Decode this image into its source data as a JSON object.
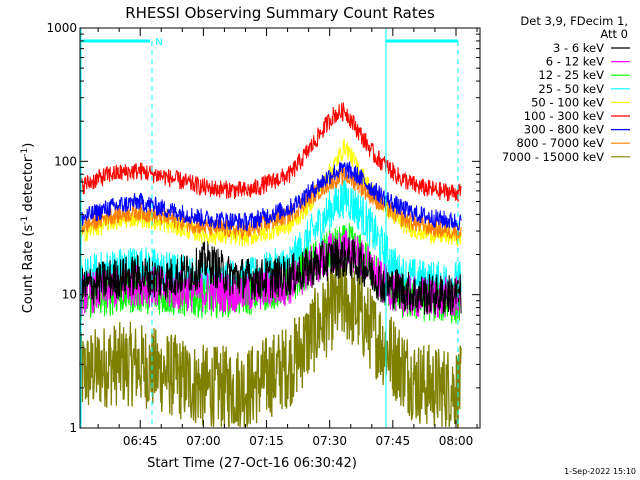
{
  "chart_data": {
    "type": "line",
    "title": "RHESSI Observing Summary Count Rates",
    "xlabel": "Start Time (27-Oct-16 06:30:42)",
    "ylabel": "Count Rate (s",
    "ylabel_sup1": "-1",
    "ylabel_mid": " detector",
    "ylabel_sup2": "-1",
    "ylabel_end": ")",
    "yscale": "log",
    "ylim": [
      1,
      1000
    ],
    "xlim_minutes": [
      0,
      95
    ],
    "x_ticks": [
      {
        "label": "06:45",
        "minutes": 14.3
      },
      {
        "label": "07:00",
        "minutes": 29.3
      },
      {
        "label": "07:15",
        "minutes": 44.3
      },
      {
        "label": "07:30",
        "minutes": 59.3
      },
      {
        "label": "07:45",
        "minutes": 74.3
      },
      {
        "label": "08:00",
        "minutes": 89.3
      }
    ],
    "y_ticks": [
      {
        "label": "1",
        "value": 1
      },
      {
        "label": "10",
        "value": 10
      },
      {
        "label": "100",
        "value": 100
      },
      {
        "label": "1000",
        "value": 1000
      }
    ],
    "legend_header": [
      "Det 3,9, FDecim 1,",
      "Att 0"
    ],
    "series": [
      {
        "name": "3 - 6 keV",
        "color": "#000000",
        "points": [
          [
            0,
            11
          ],
          [
            7,
            13
          ],
          [
            14,
            14
          ],
          [
            20,
            13
          ],
          [
            27,
            15
          ],
          [
            30,
            18
          ],
          [
            35,
            14
          ],
          [
            42,
            13
          ],
          [
            50,
            14
          ],
          [
            55,
            16
          ],
          [
            60,
            19
          ],
          [
            64,
            19
          ],
          [
            68,
            16
          ],
          [
            72,
            12
          ],
          [
            76,
            11
          ],
          [
            80,
            10
          ],
          [
            85,
            10
          ],
          [
            90,
            10
          ]
        ]
      },
      {
        "name": "6 - 12 keV",
        "color": "#ff00ff",
        "points": [
          [
            0,
            10
          ],
          [
            7,
            11
          ],
          [
            14,
            12
          ],
          [
            20,
            11
          ],
          [
            30,
            10.5
          ],
          [
            40,
            10.5
          ],
          [
            50,
            12
          ],
          [
            55,
            16
          ],
          [
            60,
            21
          ],
          [
            64,
            22
          ],
          [
            68,
            17
          ],
          [
            72,
            12
          ],
          [
            76,
            10
          ],
          [
            80,
            9.5
          ],
          [
            85,
            9.5
          ],
          [
            90,
            9.5
          ]
        ]
      },
      {
        "name": "12 - 25 keV",
        "color": "#00ff00",
        "points": [
          [
            0,
            9
          ],
          [
            7,
            10
          ],
          [
            14,
            10.5
          ],
          [
            20,
            10
          ],
          [
            30,
            9.5
          ],
          [
            40,
            10
          ],
          [
            50,
            12
          ],
          [
            55,
            17
          ],
          [
            60,
            22
          ],
          [
            64,
            24
          ],
          [
            68,
            18
          ],
          [
            72,
            12
          ],
          [
            76,
            9.5
          ],
          [
            80,
            9
          ],
          [
            85,
            9
          ],
          [
            90,
            8.5
          ]
        ]
      },
      {
        "name": "25 - 50 keV",
        "color": "#00ffff",
        "points": [
          [
            0,
            13
          ],
          [
            7,
            15.5
          ],
          [
            14,
            16.5
          ],
          [
            20,
            15
          ],
          [
            30,
            13
          ],
          [
            40,
            13
          ],
          [
            50,
            17
          ],
          [
            55,
            28
          ],
          [
            60,
            45
          ],
          [
            63,
            55
          ],
          [
            67,
            40
          ],
          [
            72,
            22
          ],
          [
            76,
            14
          ],
          [
            80,
            13
          ],
          [
            85,
            12.5
          ],
          [
            90,
            12.5
          ]
        ]
      },
      {
        "name": "50 - 100 keV",
        "color": "#ffff00",
        "points": [
          [
            0,
            28
          ],
          [
            7,
            35
          ],
          [
            14,
            38
          ],
          [
            20,
            34
          ],
          [
            30,
            28
          ],
          [
            40,
            27
          ],
          [
            50,
            33
          ],
          [
            55,
            50
          ],
          [
            60,
            90
          ],
          [
            63,
            130
          ],
          [
            66,
            90
          ],
          [
            70,
            55
          ],
          [
            76,
            35
          ],
          [
            80,
            30
          ],
          [
            85,
            28
          ],
          [
            90,
            27
          ]
        ]
      },
      {
        "name": "100 - 300 keV",
        "color": "#ff0000",
        "points": [
          [
            0,
            65
          ],
          [
            7,
            80
          ],
          [
            14,
            85
          ],
          [
            20,
            77
          ],
          [
            30,
            63
          ],
          [
            40,
            60
          ],
          [
            50,
            80
          ],
          [
            55,
            130
          ],
          [
            60,
            220
          ],
          [
            63,
            240
          ],
          [
            66,
            170
          ],
          [
            70,
            110
          ],
          [
            76,
            75
          ],
          [
            80,
            65
          ],
          [
            85,
            60
          ],
          [
            90,
            58
          ]
        ]
      },
      {
        "name": "300 - 800 keV",
        "color": "#0000ff",
        "points": [
          [
            0,
            37
          ],
          [
            7,
            45
          ],
          [
            14,
            50
          ],
          [
            20,
            44
          ],
          [
            30,
            37
          ],
          [
            40,
            35
          ],
          [
            50,
            45
          ],
          [
            55,
            60
          ],
          [
            60,
            82
          ],
          [
            63,
            88
          ],
          [
            66,
            78
          ],
          [
            70,
            60
          ],
          [
            76,
            45
          ],
          [
            80,
            40
          ],
          [
            85,
            37
          ],
          [
            90,
            35
          ]
        ]
      },
      {
        "name": "800 - 7000 keV",
        "color": "#ff8000",
        "points": [
          [
            0,
            32
          ],
          [
            7,
            39
          ],
          [
            14,
            42
          ],
          [
            20,
            38
          ],
          [
            30,
            32
          ],
          [
            40,
            30
          ],
          [
            50,
            40
          ],
          [
            55,
            55
          ],
          [
            60,
            72
          ],
          [
            63,
            78
          ],
          [
            66,
            68
          ],
          [
            70,
            52
          ],
          [
            76,
            38
          ],
          [
            80,
            34
          ],
          [
            85,
            31
          ],
          [
            90,
            30
          ]
        ]
      },
      {
        "name": "7000 - 15000 keV",
        "color": "#808000",
        "points": [
          [
            0,
            2.5
          ],
          [
            7,
            3
          ],
          [
            14,
            3
          ],
          [
            20,
            2.6
          ],
          [
            30,
            2
          ],
          [
            40,
            2
          ],
          [
            50,
            3
          ],
          [
            55,
            5
          ],
          [
            60,
            8
          ],
          [
            63,
            9
          ],
          [
            66,
            7.5
          ],
          [
            70,
            5
          ],
          [
            76,
            3
          ],
          [
            80,
            2.2
          ],
          [
            85,
            2
          ],
          [
            90,
            2
          ]
        ]
      }
    ],
    "markers": {
      "n_label": "N"
    },
    "timestamp": "1-Sep-2022 15:10"
  }
}
